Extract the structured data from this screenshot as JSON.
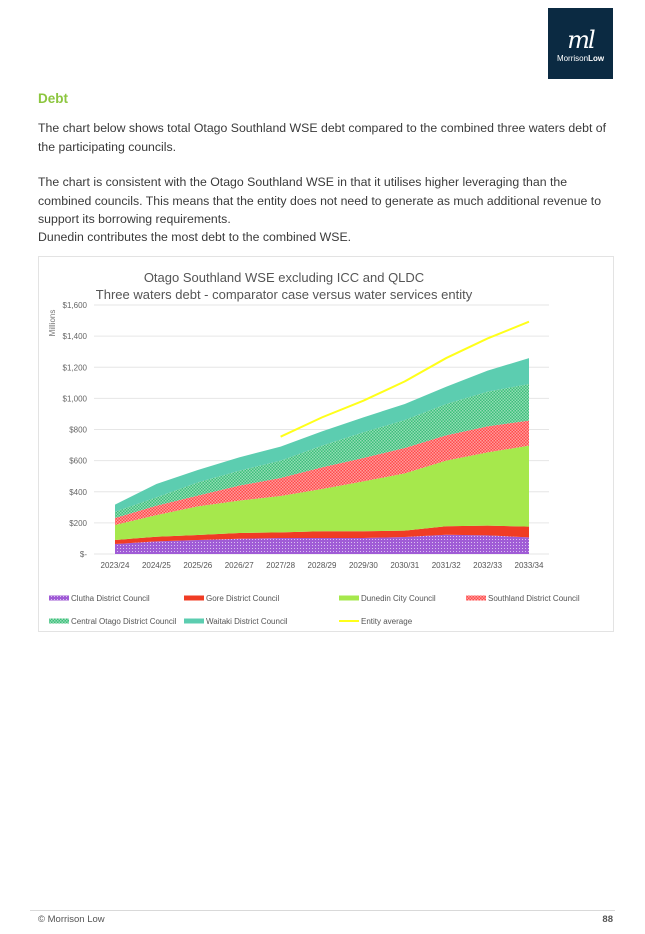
{
  "logo": {
    "mark": "ml",
    "name_a": "Morrison",
    "name_b": "Low"
  },
  "heading": "Debt",
  "paragraphs": [
    "The chart below shows total Otago Southland WSE debt compared to the combined three waters debt of the participating councils.",
    "The chart is consistent with the Otago Southland WSE in that it utilises higher leveraging than the combined councils.  This means that the entity does not need to generate as much additional revenue to support its borrowing requirements.",
    "Dunedin contributes the most debt to the combined WSE."
  ],
  "footer": {
    "left": "© Morrison Low",
    "page": "88"
  },
  "chart_data": {
    "type": "area",
    "stacked": true,
    "title": "Otago Southland WSE excluding ICC and QLDC",
    "subtitle": "Three waters debt - comparator case versus water services entity",
    "ylabel": "Millions",
    "xlabel": "",
    "ylim": [
      0,
      1600
    ],
    "yticks": [
      0,
      200,
      400,
      600,
      800,
      1000,
      1200,
      1400,
      1600
    ],
    "ytick_labels": [
      "$-",
      "$200",
      "$400",
      "$600",
      "$800",
      "$1,000",
      "$1,200",
      "$1,400",
      "$1,600"
    ],
    "grid": true,
    "legend_placement": "bottom",
    "categories": [
      "2023/24",
      "2024/25",
      "2025/26",
      "2026/27",
      "2027/28",
      "2028/29",
      "2029/30",
      "2030/31",
      "2031/32",
      "2032/33",
      "2033/34"
    ],
    "series": [
      {
        "name": "Clutha District Council",
        "color": "#a05cd6",
        "pattern": "dots",
        "values": [
          64,
          81,
          90,
          98,
          103,
          103,
          103,
          109,
          124,
          120,
          107
        ]
      },
      {
        "name": "Gore District Council",
        "color": "#f03c24",
        "pattern": "solid",
        "values": [
          26,
          30,
          32,
          37,
          36,
          43,
          43,
          41,
          54,
          62,
          69
        ]
      },
      {
        "name": "Dunedin City Council",
        "color": "#a6e84c",
        "pattern": "solid",
        "values": [
          96,
          139,
          184,
          208,
          234,
          272,
          321,
          368,
          422,
          471,
          520
        ]
      },
      {
        "name": "Southland District Council",
        "color": "#ff4b4b",
        "pattern": "checker",
        "values": [
          45,
          60,
          69,
          96,
          115,
          139,
          150,
          163,
          162,
          167,
          161
        ]
      },
      {
        "name": "Central Otago District Council",
        "color": "#3cbf7a",
        "pattern": "checker",
        "values": [
          41,
          54,
          85,
          96,
          112,
          139,
          165,
          180,
          202,
          223,
          235
        ]
      },
      {
        "name": "Waitaki District Council",
        "color": "#5ccdb0",
        "pattern": "solid",
        "values": [
          45,
          86,
          80,
          86,
          90,
          92,
          96,
          103,
          111,
          135,
          167
        ]
      }
    ],
    "line_series": {
      "name": "Entity average",
      "color": "#ffff1a",
      "values": [
        null,
        null,
        null,
        null,
        754,
        878,
        985,
        1109,
        1259,
        1385,
        1493
      ]
    }
  }
}
